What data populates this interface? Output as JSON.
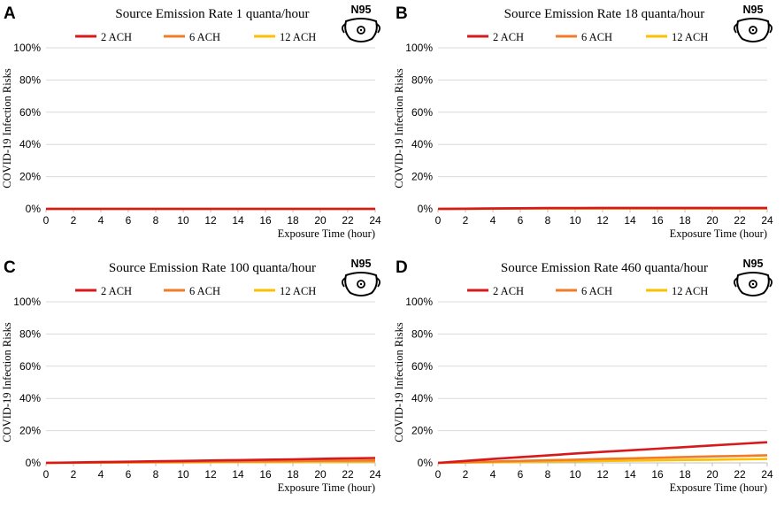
{
  "colors": {
    "ach2": "#d7191c",
    "ach6": "#f07c2a",
    "ach12": "#fdbf00",
    "grid": "#d9d9d9",
    "axis": "#bfbfbf",
    "text": "#000000"
  },
  "chart_data": [
    {
      "type": "line",
      "panel_label": "A",
      "title": "Source Emission Rate 1 quanta/hour",
      "badge": "N95",
      "xlabel": "Exposure Time (hour)",
      "ylabel": "COVID-19 Infection Risks",
      "xlim": [
        0,
        24
      ],
      "ylim": [
        0,
        100
      ],
      "x": [
        0,
        2,
        4,
        6,
        8,
        10,
        12,
        14,
        16,
        18,
        20,
        22,
        24
      ],
      "x_ticks": [
        "0",
        "2",
        "4",
        "6",
        "8",
        "10",
        "12",
        "14",
        "16",
        "18",
        "20",
        "22",
        "24"
      ],
      "y_ticks": [
        "0%",
        "20%",
        "40%",
        "60%",
        "80%",
        "100%"
      ],
      "series": [
        {
          "name": "2 ACH",
          "color": "#d7191c",
          "values": [
            0,
            0,
            0,
            0,
            0,
            0,
            0,
            0,
            0,
            0,
            0,
            0,
            0
          ]
        },
        {
          "name": "6 ACH",
          "color": "#f07c2a",
          "values": [
            0,
            0,
            0,
            0,
            0,
            0,
            0,
            0,
            0,
            0,
            0,
            0,
            0
          ]
        },
        {
          "name": "12 ACH",
          "color": "#fdbf00",
          "values": [
            0,
            0,
            0,
            0,
            0,
            0,
            0,
            0,
            0,
            0,
            0,
            0,
            0
          ]
        }
      ]
    },
    {
      "type": "line",
      "panel_label": "B",
      "title": "Source Emission Rate 18 quanta/hour",
      "badge": "N95",
      "xlabel": "Exposure Time (hour)",
      "ylabel": "COVID-19 Infection Risks",
      "xlim": [
        0,
        24
      ],
      "ylim": [
        0,
        100
      ],
      "x": [
        0,
        2,
        4,
        6,
        8,
        10,
        12,
        14,
        16,
        18,
        20,
        22,
        24
      ],
      "x_ticks": [
        "0",
        "2",
        "4",
        "6",
        "8",
        "10",
        "12",
        "14",
        "16",
        "18",
        "20",
        "22",
        "24"
      ],
      "y_ticks": [
        "0%",
        "20%",
        "40%",
        "60%",
        "80%",
        "100%"
      ],
      "series": [
        {
          "name": "2 ACH",
          "color": "#d7191c",
          "values": [
            0,
            0.1,
            0.2,
            0.4,
            0.5,
            0.5,
            0.6,
            0.6,
            0.6,
            0.6,
            0.6,
            0.6,
            0.6
          ]
        },
        {
          "name": "6 ACH",
          "color": "#f07c2a",
          "values": [
            0,
            0.1,
            0.2,
            0.3,
            0.4,
            0.4,
            0.4,
            0.4,
            0.4,
            0.4,
            0.4,
            0.4,
            0.4
          ]
        },
        {
          "name": "12 ACH",
          "color": "#fdbf00",
          "values": [
            0,
            0,
            0.1,
            0.2,
            0.2,
            0.2,
            0.2,
            0.2,
            0.2,
            0.2,
            0.2,
            0.2,
            0.2
          ]
        }
      ]
    },
    {
      "type": "line",
      "panel_label": "C",
      "title": "Source Emission Rate 100 quanta/hour",
      "badge": "N95",
      "xlabel": "Exposure Time (hour)",
      "ylabel": "COVID-19 Infection Risks",
      "xlim": [
        0,
        24
      ],
      "ylim": [
        0,
        100
      ],
      "x": [
        0,
        2,
        4,
        6,
        8,
        10,
        12,
        14,
        16,
        18,
        20,
        22,
        24
      ],
      "x_ticks": [
        "0",
        "2",
        "4",
        "6",
        "8",
        "10",
        "12",
        "14",
        "16",
        "18",
        "20",
        "22",
        "24"
      ],
      "y_ticks": [
        "0%",
        "20%",
        "40%",
        "60%",
        "80%",
        "100%"
      ],
      "series": [
        {
          "name": "2 ACH",
          "color": "#d7191c",
          "values": [
            0,
            0.2,
            0.5,
            0.7,
            1.0,
            1.2,
            1.5,
            1.7,
            2.0,
            2.2,
            2.5,
            2.8,
            3.0
          ]
        },
        {
          "name": "6 ACH",
          "color": "#f07c2a",
          "values": [
            0,
            0.1,
            0.2,
            0.4,
            0.5,
            0.6,
            0.8,
            0.9,
            1.0,
            1.1,
            1.3,
            1.4,
            1.5
          ]
        },
        {
          "name": "12 ACH",
          "color": "#fdbf00",
          "values": [
            0,
            0.1,
            0.1,
            0.2,
            0.3,
            0.3,
            0.4,
            0.5,
            0.5,
            0.6,
            0.7,
            0.7,
            0.8
          ]
        }
      ]
    },
    {
      "type": "line",
      "panel_label": "D",
      "title": "Source Emission Rate 460 quanta/hour",
      "badge": "N95",
      "xlabel": "Exposure Time (hour)",
      "ylabel": "COVID-19 Infection Risks",
      "xlim": [
        0,
        24
      ],
      "ylim": [
        0,
        100
      ],
      "x": [
        0,
        2,
        4,
        6,
        8,
        10,
        12,
        14,
        16,
        18,
        20,
        22,
        24
      ],
      "x_ticks": [
        "0",
        "2",
        "4",
        "6",
        "8",
        "10",
        "12",
        "14",
        "16",
        "18",
        "20",
        "22",
        "24"
      ],
      "y_ticks": [
        "0%",
        "20%",
        "40%",
        "60%",
        "80%",
        "100%"
      ],
      "series": [
        {
          "name": "2 ACH",
          "color": "#d7191c",
          "values": [
            0,
            1.2,
            2.4,
            3.5,
            4.6,
            5.8,
            6.8,
            7.8,
            8.8,
            9.8,
            10.8,
            11.8,
            12.8
          ]
        },
        {
          "name": "6 ACH",
          "color": "#f07c2a",
          "values": [
            0,
            0.4,
            0.8,
            1.2,
            1.6,
            2.0,
            2.4,
            2.8,
            3.2,
            3.6,
            4.0,
            4.3,
            4.7
          ]
        },
        {
          "name": "12 ACH",
          "color": "#fdbf00",
          "values": [
            0,
            0.2,
            0.4,
            0.6,
            0.8,
            1.0,
            1.2,
            1.4,
            1.6,
            1.8,
            2.0,
            2.2,
            2.4
          ]
        }
      ]
    }
  ]
}
